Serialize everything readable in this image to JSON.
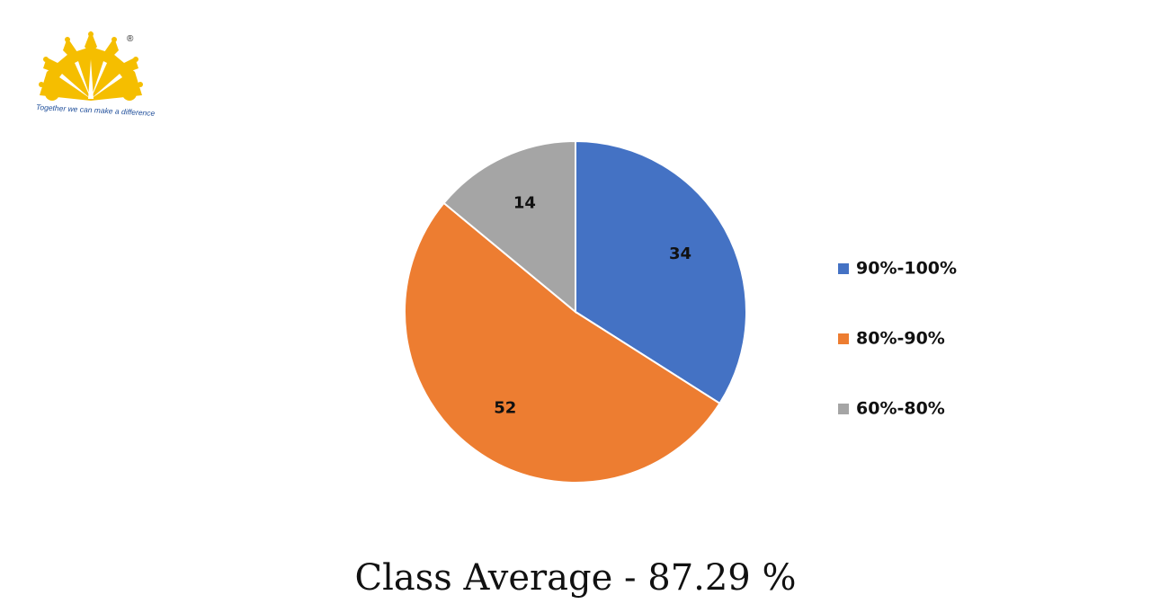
{
  "logo": {
    "icon": "sunburst-crown-logo",
    "tagline": "Together we can make a difference",
    "registered_mark": "®",
    "color": "#F5BE00"
  },
  "chart_data": {
    "type": "pie",
    "categories": [
      "90%-100%",
      "80%-90%",
      "60%-80%"
    ],
    "values": [
      34,
      52,
      14
    ],
    "colors": [
      "#4472C4",
      "#ED7D31",
      "#A5A5A5"
    ],
    "data_labels": [
      "34",
      "52",
      "14"
    ],
    "start_angle": "12 o'clock, clockwise",
    "legend_position": "right",
    "title": ""
  },
  "footer": {
    "text": "Class Average - 87.29 %"
  }
}
